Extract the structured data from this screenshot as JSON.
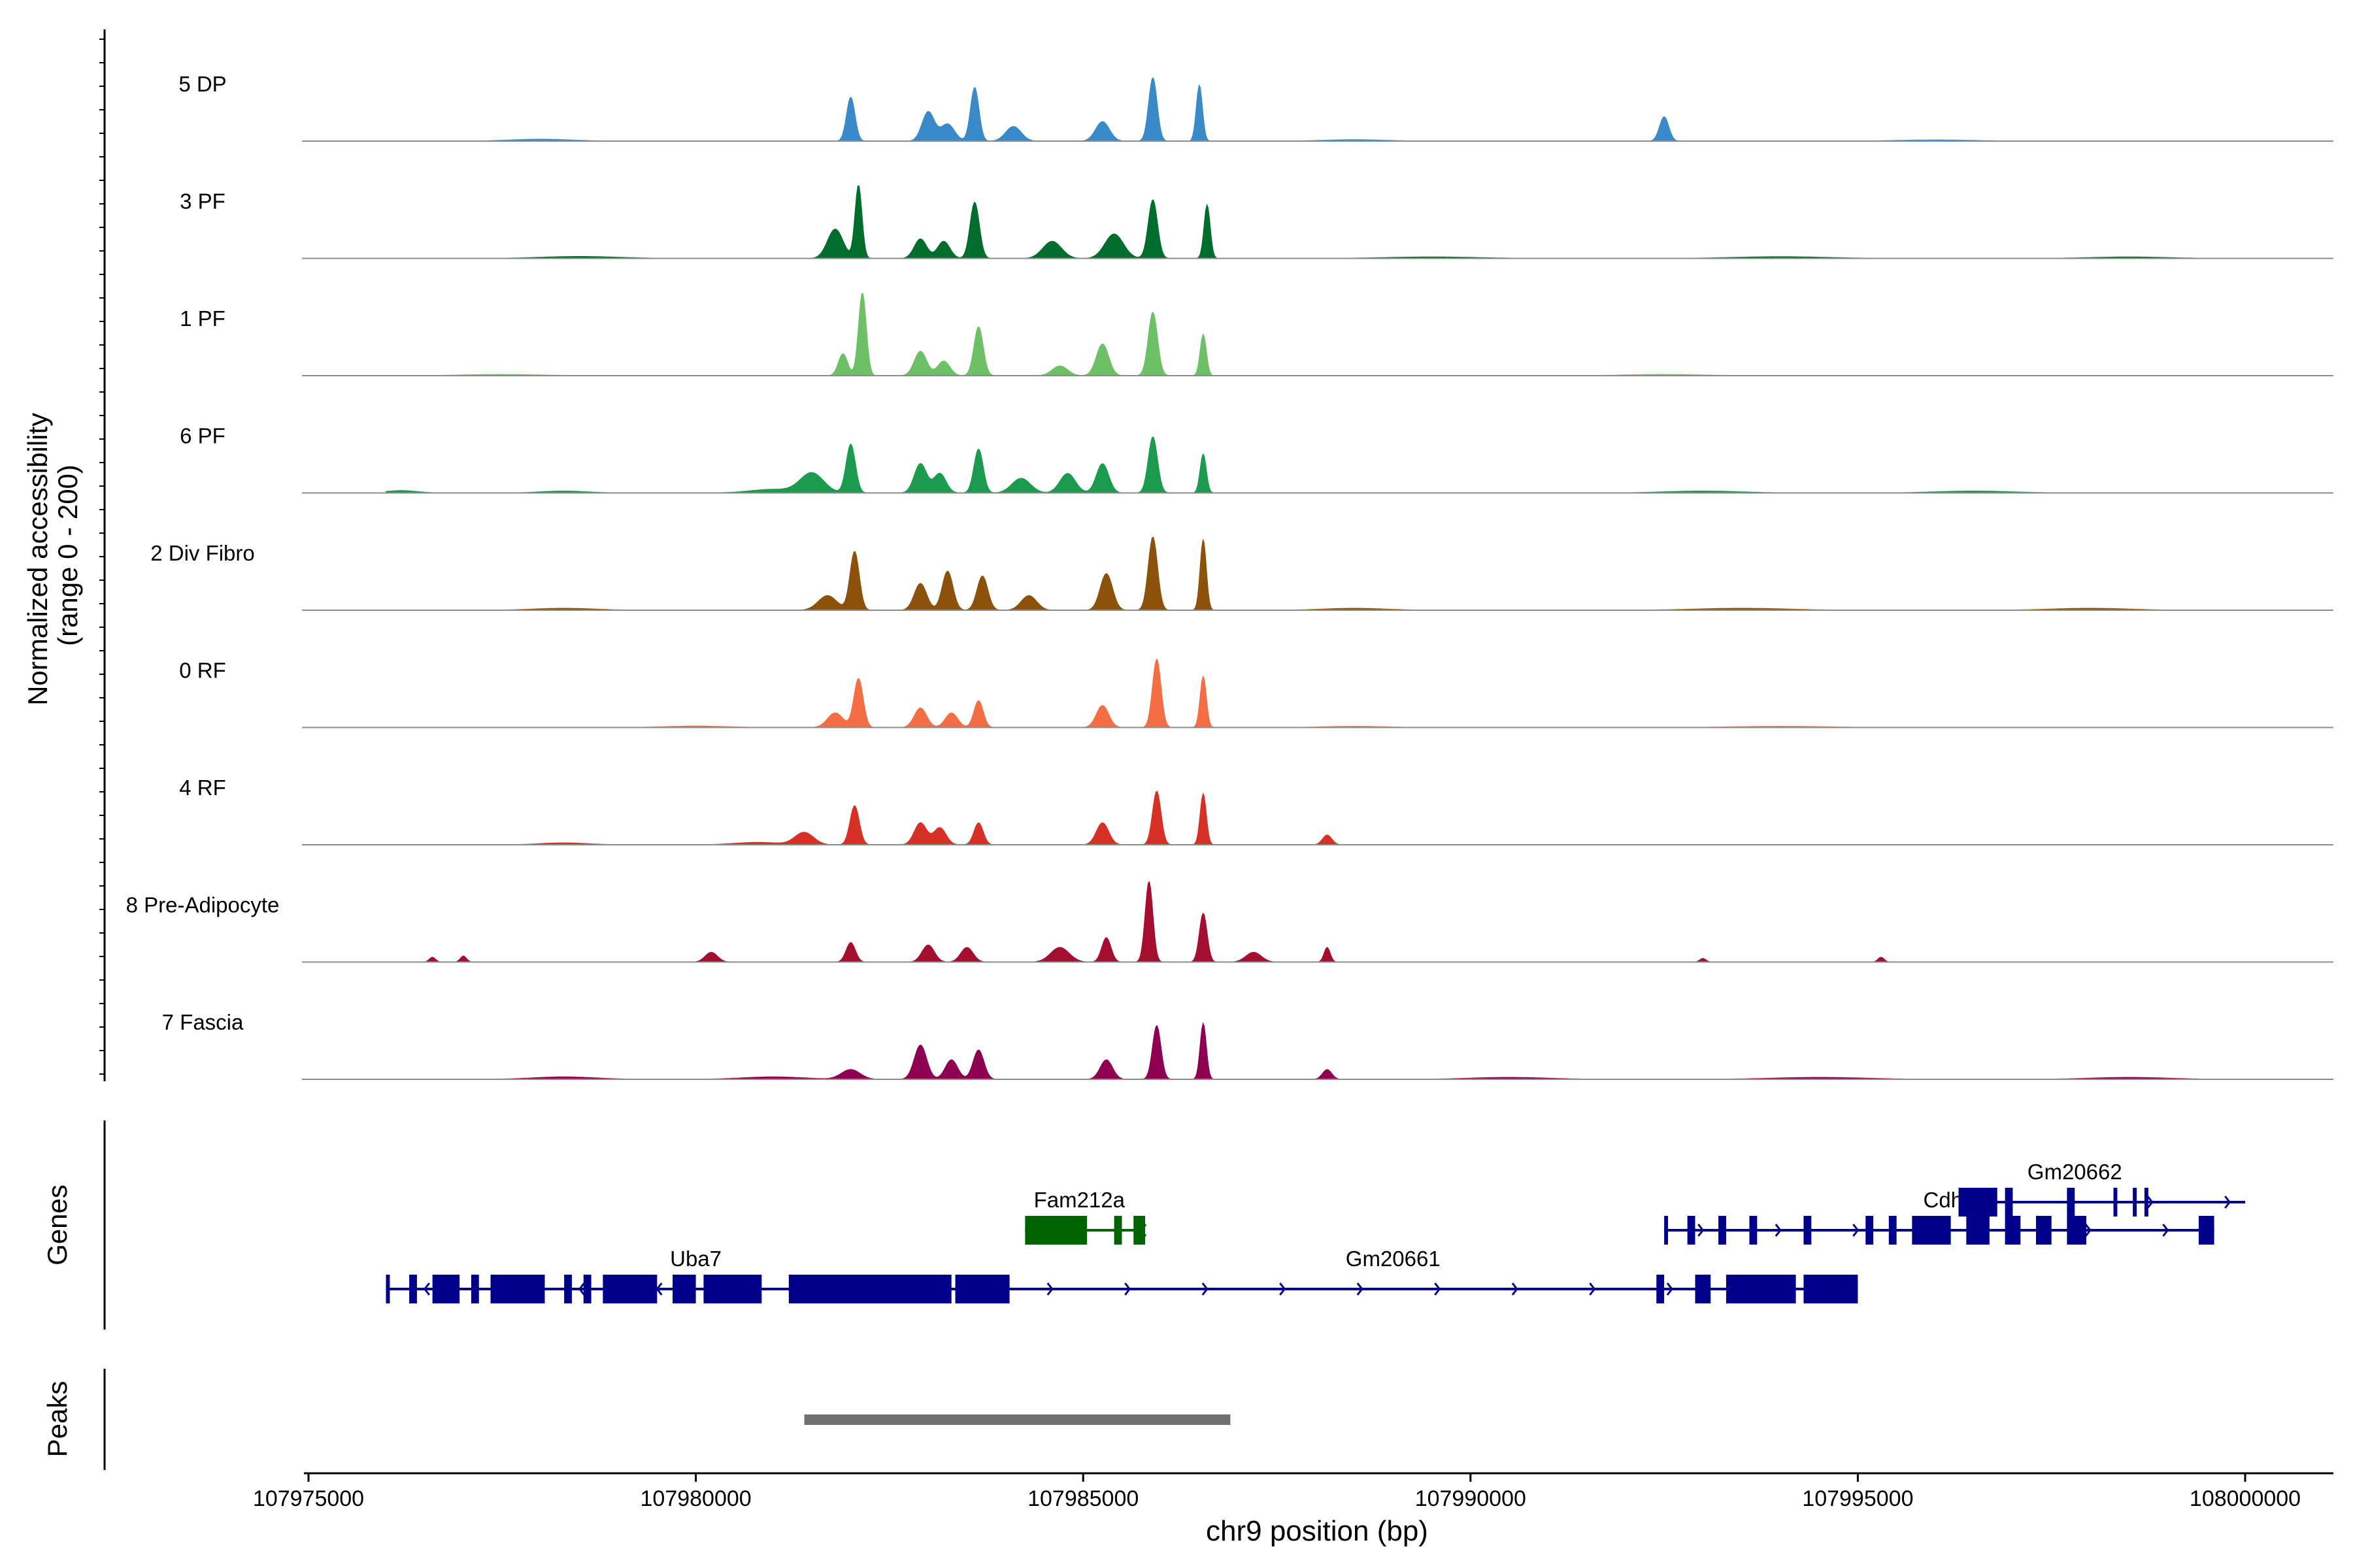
{
  "chart_data": {
    "type": "area",
    "chromosome": "chr9",
    "xlabel": "chr9 position (bp)",
    "xlim": [
      107975000,
      108000000
    ],
    "x_ticks": [
      107975000,
      107980000,
      107985000,
      107990000,
      107995000,
      108000000
    ],
    "x_tick_labels": [
      "107975000",
      "107980000",
      "107985000",
      "107990000",
      "107995000",
      "108000000"
    ],
    "coverage_ylabel_line1": "Normalized accessibility",
    "coverage_ylabel_line2": "(range 0 - 200)",
    "coverage_range": [
      0,
      200
    ],
    "genes_panel_label": "Genes",
    "peaks_panel_label": "Peaks",
    "series": [
      {
        "name": "5 DP",
        "color": "#3A89C9",
        "peaks": [
          [
            107982000,
            180,
            55
          ],
          [
            107983000,
            120,
            80
          ],
          [
            107983250,
            70,
            90
          ],
          [
            107983600,
            220,
            55
          ],
          [
            107984100,
            60,
            100
          ],
          [
            107985250,
            80,
            90
          ],
          [
            107985900,
            260,
            55
          ],
          [
            107986500,
            230,
            40
          ],
          [
            107992500,
            100,
            60
          ],
          [
            107978000,
            8,
            400
          ],
          [
            107988500,
            6,
            400
          ],
          [
            107996000,
            5,
            500
          ]
        ]
      },
      {
        "name": "3 PF",
        "color": "#006D2C",
        "peaks": [
          [
            107981800,
            120,
            100
          ],
          [
            107982100,
            300,
            45
          ],
          [
            107982900,
            80,
            80
          ],
          [
            107983200,
            70,
            80
          ],
          [
            107983600,
            230,
            60
          ],
          [
            107984600,
            70,
            120
          ],
          [
            107985400,
            100,
            120
          ],
          [
            107985900,
            240,
            60
          ],
          [
            107986600,
            220,
            40
          ],
          [
            107978500,
            8,
            500
          ],
          [
            107989500,
            6,
            600
          ],
          [
            107994000,
            7,
            600
          ],
          [
            107998500,
            6,
            500
          ]
        ]
      },
      {
        "name": "1 PF",
        "color": "#6DC066",
        "peaks": [
          [
            107981900,
            90,
            60
          ],
          [
            107982150,
            340,
            50
          ],
          [
            107982900,
            100,
            80
          ],
          [
            107983200,
            60,
            80
          ],
          [
            107983650,
            200,
            60
          ],
          [
            107984700,
            40,
            100
          ],
          [
            107985250,
            130,
            80
          ],
          [
            107985900,
            260,
            60
          ],
          [
            107986550,
            170,
            40
          ],
          [
            107977500,
            5,
            500
          ],
          [
            107992500,
            5,
            500
          ]
        ]
      },
      {
        "name": "6 PF",
        "color": "#1C9A4E",
        "peaks": [
          [
            107982000,
            200,
            60
          ],
          [
            107981500,
            80,
            150
          ],
          [
            107982900,
            120,
            80
          ],
          [
            107983150,
            80,
            80
          ],
          [
            107983650,
            180,
            60
          ],
          [
            107984200,
            60,
            120
          ],
          [
            107984800,
            80,
            100
          ],
          [
            107985250,
            120,
            80
          ],
          [
            107985900,
            230,
            60
          ],
          [
            107986550,
            160,
            40
          ],
          [
            107976200,
            10,
            200
          ],
          [
            107978300,
            8,
            300
          ],
          [
            107981000,
            15,
            300
          ],
          [
            107993000,
            8,
            500
          ],
          [
            107996500,
            8,
            500
          ]
        ]
      },
      {
        "name": "2 Div Fibro",
        "color": "#8C510A",
        "peaks": [
          [
            107982050,
            240,
            60
          ],
          [
            107981700,
            60,
            120
          ],
          [
            107982900,
            110,
            80
          ],
          [
            107983250,
            160,
            70
          ],
          [
            107983700,
            140,
            70
          ],
          [
            107984300,
            60,
            100
          ],
          [
            107985300,
            150,
            80
          ],
          [
            107985900,
            300,
            60
          ],
          [
            107986550,
            290,
            40
          ],
          [
            107978300,
            8,
            400
          ],
          [
            107988500,
            8,
            400
          ],
          [
            107993500,
            8,
            600
          ],
          [
            107998000,
            8,
            500
          ]
        ]
      },
      {
        "name": "0 RF",
        "color": "#F46D43",
        "peaks": [
          [
            107982100,
            200,
            60
          ],
          [
            107981800,
            60,
            100
          ],
          [
            107982900,
            80,
            80
          ],
          [
            107983300,
            60,
            80
          ],
          [
            107983650,
            110,
            60
          ],
          [
            107985250,
            90,
            80
          ],
          [
            107985950,
            280,
            55
          ],
          [
            107986550,
            210,
            40
          ],
          [
            107980000,
            6,
            400
          ],
          [
            107988500,
            5,
            400
          ],
          [
            107994000,
            5,
            600
          ]
        ]
      },
      {
        "name": "4 RF",
        "color": "#D73027",
        "peaks": [
          [
            107982050,
            160,
            60
          ],
          [
            107981400,
            50,
            120
          ],
          [
            107982900,
            90,
            80
          ],
          [
            107983150,
            70,
            80
          ],
          [
            107983650,
            90,
            60
          ],
          [
            107985250,
            90,
            80
          ],
          [
            107985950,
            220,
            55
          ],
          [
            107986550,
            210,
            40
          ],
          [
            107988150,
            40,
            60
          ],
          [
            107978300,
            8,
            300
          ],
          [
            107980800,
            10,
            300
          ]
        ]
      },
      {
        "name": "8 Pre-Adipocyte",
        "color": "#A50F2F",
        "peaks": [
          [
            107982000,
            80,
            60
          ],
          [
            107983000,
            70,
            80
          ],
          [
            107983500,
            60,
            80
          ],
          [
            107984700,
            60,
            120
          ],
          [
            107985300,
            100,
            60
          ],
          [
            107985850,
            330,
            50
          ],
          [
            107986550,
            200,
            50
          ],
          [
            107987200,
            40,
            100
          ],
          [
            107988150,
            60,
            40
          ],
          [
            107980200,
            40,
            80
          ],
          [
            107976600,
            20,
            40
          ],
          [
            107977000,
            25,
            40
          ],
          [
            107993000,
            15,
            40
          ],
          [
            107995300,
            20,
            40
          ]
        ]
      },
      {
        "name": "7 Fascia",
        "color": "#8E0152",
        "peaks": [
          [
            107982000,
            40,
            120
          ],
          [
            107982900,
            140,
            80
          ],
          [
            107983300,
            80,
            80
          ],
          [
            107983650,
            120,
            70
          ],
          [
            107985300,
            80,
            80
          ],
          [
            107985950,
            220,
            55
          ],
          [
            107986550,
            230,
            40
          ],
          [
            107988150,
            40,
            60
          ],
          [
            107978300,
            10,
            400
          ],
          [
            107981000,
            10,
            400
          ],
          [
            107990500,
            8,
            500
          ],
          [
            107994500,
            8,
            600
          ],
          [
            107998500,
            8,
            500
          ]
        ]
      }
    ],
    "genes": [
      {
        "name": "Uba7",
        "strand": "-",
        "color": "#00008B",
        "row": 2,
        "start": 107976000,
        "end": 107984050,
        "label_pos": 107980000,
        "exons": [
          [
            107976000,
            107976050
          ],
          [
            107976300,
            107976400
          ],
          [
            107976600,
            107976950
          ],
          [
            107977100,
            107977200
          ],
          [
            107977350,
            107978050
          ],
          [
            107978300,
            107978400
          ],
          [
            107978550,
            107978650
          ],
          [
            107978800,
            107979500
          ],
          [
            107979700,
            107980000
          ],
          [
            107980100,
            107980850
          ],
          [
            107981200,
            107983100
          ],
          [
            107983150,
            107983300
          ],
          [
            107983350,
            107984050
          ]
        ]
      },
      {
        "name": "Gm20661",
        "strand": "+",
        "color": "#00008B",
        "row": 2,
        "start": 107983100,
        "end": 107995000,
        "label_pos": 107989000,
        "exons": [
          [
            107983100,
            107983250
          ],
          [
            107983350,
            107983450
          ],
          [
            107992400,
            107992500
          ],
          [
            107992900,
            107993100
          ],
          [
            107993300,
            107994200
          ],
          [
            107994300,
            107995000
          ]
        ]
      },
      {
        "name": "Fam212a",
        "strand": "-",
        "color": "#006400",
        "row": 1,
        "start": 107984250,
        "end": 107985800,
        "label_pos": 107984950,
        "exons": [
          [
            107984250,
            107985050
          ],
          [
            107985400,
            107985500
          ],
          [
            107985650,
            107985800
          ]
        ]
      },
      {
        "name": "Cdh",
        "strand": "+",
        "color": "#00008B",
        "row": 1,
        "start": 107992500,
        "end": 107999600,
        "label_pos": 107996100,
        "exons": [
          [
            107992500,
            107992550
          ],
          [
            107992800,
            107992900
          ],
          [
            107993200,
            107993300
          ],
          [
            107993600,
            107993700
          ],
          [
            107994300,
            107994400
          ],
          [
            107995100,
            107995200
          ],
          [
            107995400,
            107995500
          ],
          [
            107995700,
            107996200
          ],
          [
            107996400,
            107996700
          ],
          [
            107996900,
            107997100
          ],
          [
            107997300,
            107997500
          ],
          [
            107997700,
            107997950
          ],
          [
            107999400,
            107999600
          ]
        ]
      },
      {
        "name": "Gm20662",
        "strand": "+",
        "color": "#00008B",
        "row": 0,
        "start": 107996300,
        "end": 108000000,
        "label_pos": 107997800,
        "exons": [
          [
            107996300,
            107996800
          ],
          [
            107996900,
            107997000
          ],
          [
            107997700,
            107997800
          ],
          [
            107998300,
            107998350
          ],
          [
            107998550,
            107998600
          ],
          [
            107998700,
            107998750
          ]
        ]
      }
    ],
    "peaks_track": [
      [
        107981400,
        107986900
      ]
    ],
    "peaks_track_color": "#6F6F6F"
  }
}
